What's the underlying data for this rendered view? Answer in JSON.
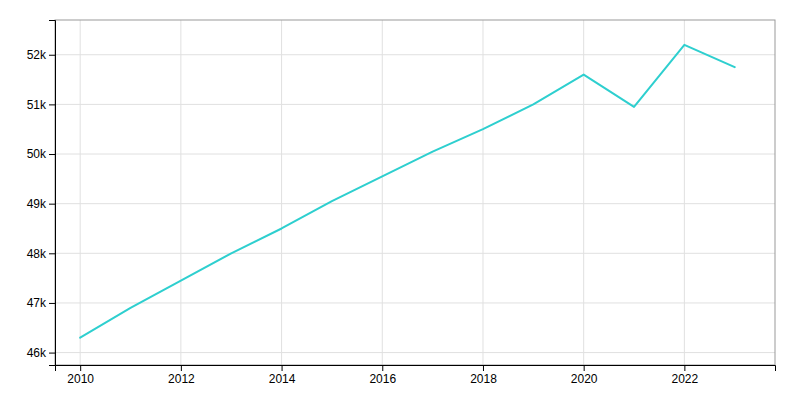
{
  "chart_data": {
    "type": "line",
    "x": [
      2010,
      2011,
      2012,
      2013,
      2014,
      2015,
      2016,
      2017,
      2018,
      2019,
      2020,
      2021,
      2022,
      2023
    ],
    "values": [
      46300,
      46900,
      47450,
      48000,
      48500,
      49050,
      49550,
      50050,
      50500,
      51000,
      51600,
      50950,
      52200,
      51750
    ],
    "color": "#2ecfcf",
    "xlim": [
      2009.5,
      2023.8
    ],
    "ylim": [
      45750,
      52700
    ],
    "xticks": [
      2010,
      2012,
      2014,
      2016,
      2018,
      2020,
      2022
    ],
    "yticks": [
      {
        "value": 46000,
        "label": "46k"
      },
      {
        "value": 47000,
        "label": "47k"
      },
      {
        "value": 48000,
        "label": "48k"
      },
      {
        "value": 49000,
        "label": "49k"
      },
      {
        "value": 50000,
        "label": "50k"
      },
      {
        "value": 51000,
        "label": "51k"
      },
      {
        "value": 52000,
        "label": "52k"
      }
    ],
    "grid": true
  }
}
